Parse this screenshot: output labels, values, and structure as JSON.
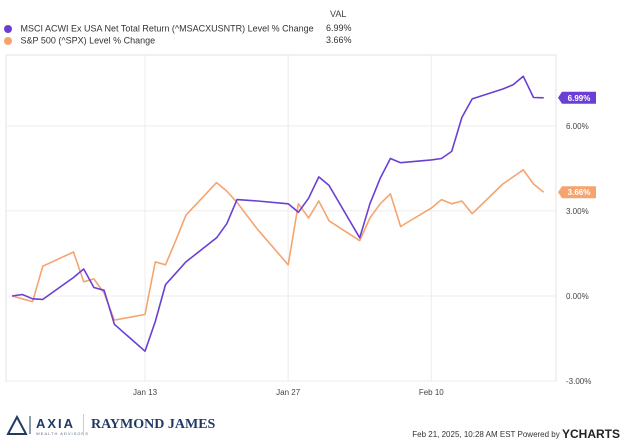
{
  "legend": {
    "value_header": "VAL",
    "items": [
      {
        "name": "MSCI ACWI Ex USA Net Total Return (^MSACXUSNTR) Level % Change",
        "value": "6.99%",
        "color": "#6b3fd4"
      },
      {
        "name": "S&P 500 (^SPX) Level % Change",
        "value": "3.66%",
        "color": "#f5a46f"
      }
    ]
  },
  "chart_data": {
    "type": "line",
    "x_ticks": [
      "Jan 13",
      "Jan 27",
      "Feb 10"
    ],
    "y_ticks": [
      "6.00%",
      "3.00%",
      "0.00%",
      "-3.00%"
    ],
    "ylim": [
      -3.0,
      8.5
    ],
    "grid": true,
    "series": [
      {
        "name": "MSCI ACWI Ex USA Net Total Return (^MSACXUSNTR) Level % Change",
        "color": "#6b3fd4",
        "end_label": "6.99%",
        "points": [
          [
            "2024-12-31",
            0.0
          ],
          [
            "2025-01-01",
            0.05
          ],
          [
            "2025-01-02",
            -0.1
          ],
          [
            "2025-01-03",
            -0.12
          ],
          [
            "2025-01-06",
            0.65
          ],
          [
            "2025-01-07",
            0.95
          ],
          [
            "2025-01-08",
            0.3
          ],
          [
            "2025-01-09",
            0.2
          ],
          [
            "2025-01-10",
            -1.0
          ],
          [
            "2025-01-13",
            -1.95
          ],
          [
            "2025-01-14",
            -0.9
          ],
          [
            "2025-01-15",
            0.4
          ],
          [
            "2025-01-16",
            0.8
          ],
          [
            "2025-01-17",
            1.2
          ],
          [
            "2025-01-20",
            2.05
          ],
          [
            "2025-01-21",
            2.55
          ],
          [
            "2025-01-22",
            3.4
          ],
          [
            "2025-01-24",
            3.35
          ],
          [
            "2025-01-27",
            3.25
          ],
          [
            "2025-01-28",
            2.95
          ],
          [
            "2025-01-29",
            3.45
          ],
          [
            "2025-01-30",
            4.2
          ],
          [
            "2025-01-31",
            3.9
          ],
          [
            "2025-02-03",
            2.05
          ],
          [
            "2025-02-04",
            3.25
          ],
          [
            "2025-02-05",
            4.15
          ],
          [
            "2025-02-06",
            4.85
          ],
          [
            "2025-02-07",
            4.7
          ],
          [
            "2025-02-10",
            4.8
          ],
          [
            "2025-02-11",
            4.85
          ],
          [
            "2025-02-12",
            5.1
          ],
          [
            "2025-02-13",
            6.3
          ],
          [
            "2025-02-14",
            6.95
          ],
          [
            "2025-02-17",
            7.3
          ],
          [
            "2025-02-18",
            7.45
          ],
          [
            "2025-02-19",
            7.75
          ],
          [
            "2025-02-20",
            7.0
          ],
          [
            "2025-02-21",
            6.99
          ]
        ]
      },
      {
        "name": "S&P 500 (^SPX) Level % Change",
        "color": "#f5a46f",
        "end_label": "3.66%",
        "points": [
          [
            "2024-12-31",
            0.0
          ],
          [
            "2025-01-01",
            -0.1
          ],
          [
            "2025-01-02",
            -0.2
          ],
          [
            "2025-01-03",
            1.05
          ],
          [
            "2025-01-06",
            1.55
          ],
          [
            "2025-01-07",
            0.5
          ],
          [
            "2025-01-08",
            0.6
          ],
          [
            "2025-01-09",
            0.1
          ],
          [
            "2025-01-10",
            -0.85
          ],
          [
            "2025-01-13",
            -0.65
          ],
          [
            "2025-01-14",
            1.2
          ],
          [
            "2025-01-15",
            1.1
          ],
          [
            "2025-01-16",
            1.95
          ],
          [
            "2025-01-17",
            2.85
          ],
          [
            "2025-01-20",
            4.0
          ],
          [
            "2025-01-21",
            3.7
          ],
          [
            "2025-01-22",
            3.3
          ],
          [
            "2025-01-24",
            2.35
          ],
          [
            "2025-01-27",
            1.1
          ],
          [
            "2025-01-28",
            3.25
          ],
          [
            "2025-01-29",
            2.75
          ],
          [
            "2025-01-30",
            3.35
          ],
          [
            "2025-01-31",
            2.65
          ],
          [
            "2025-02-03",
            1.95
          ],
          [
            "2025-02-04",
            2.75
          ],
          [
            "2025-02-05",
            3.25
          ],
          [
            "2025-02-06",
            3.6
          ],
          [
            "2025-02-07",
            2.45
          ],
          [
            "2025-02-10",
            3.1
          ],
          [
            "2025-02-11",
            3.4
          ],
          [
            "2025-02-12",
            3.25
          ],
          [
            "2025-02-13",
            3.35
          ],
          [
            "2025-02-14",
            2.9
          ],
          [
            "2025-02-17",
            3.95
          ],
          [
            "2025-02-18",
            4.2
          ],
          [
            "2025-02-19",
            4.45
          ],
          [
            "2025-02-20",
            3.95
          ],
          [
            "2025-02-21",
            3.66
          ]
        ]
      }
    ]
  },
  "footer": {
    "axia_brand": "AXIA",
    "axia_subtitle": "WEALTH ADVISORS",
    "raymond_james": "RAYMOND JAMES",
    "timestamp": "Feb 21, 2025, 10:28 AM EST Powered by",
    "ycharts": "YCHARTS"
  }
}
